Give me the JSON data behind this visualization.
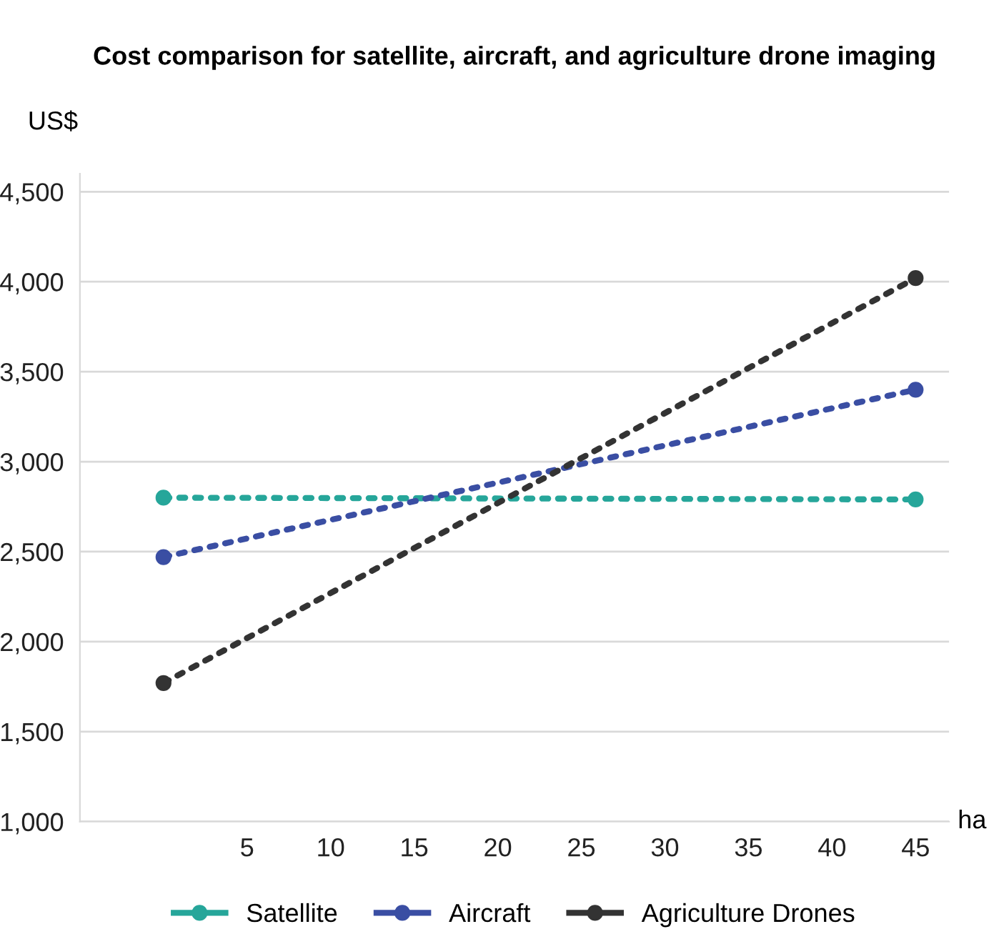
{
  "chart_data": {
    "type": "line",
    "title": "Cost comparison for satellite, aircraft, and agriculture drone imaging",
    "xlabel": "ha",
    "ylabel": "US$",
    "x": [
      0,
      45
    ],
    "series": [
      {
        "name": "Satellite",
        "color": "#26a69a",
        "values": [
          2800,
          2790
        ]
      },
      {
        "name": "Aircraft",
        "color": "#3a4ea3",
        "values": [
          2470,
          3400
        ]
      },
      {
        "name": "Agriculture Drones",
        "color": "#333333",
        "values": [
          1770,
          4020
        ]
      }
    ],
    "xlim": [
      -5,
      47
    ],
    "xticks": [
      5,
      10,
      15,
      20,
      25,
      30,
      35,
      40,
      45
    ],
    "ylim": [
      1000,
      4600
    ],
    "yticks": [
      {
        "value": 1000,
        "label": "1,000"
      },
      {
        "value": 1500,
        "label": "1,500"
      },
      {
        "value": 2000,
        "label": "2,000"
      },
      {
        "value": 2500,
        "label": "2,500"
      },
      {
        "value": 3000,
        "label": "3,000"
      },
      {
        "value": 3500,
        "label": "3,500"
      },
      {
        "value": 4000,
        "label": "4,000"
      },
      {
        "value": 4500,
        "label": "4,500"
      }
    ],
    "grid": "y",
    "legend": "bottom",
    "marker": "circle",
    "line_style": "dotted"
  }
}
